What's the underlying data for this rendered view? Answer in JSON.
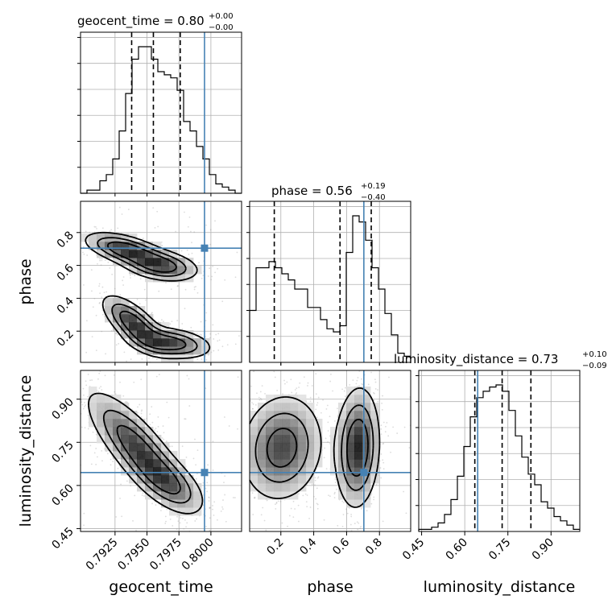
{
  "truth_color": "#4682b4",
  "parameters": [
    "geocent_time",
    "phase",
    "luminosity_distance"
  ],
  "titles": [
    {
      "text": "geocent_time = 0.80",
      "sup": "+0.00",
      "sub": "−0.00"
    },
    {
      "text": "phase = 0.56",
      "sup": "+0.19",
      "sub": "−0.40"
    },
    {
      "text": "luminosity_distance = 0.73",
      "sup": "+0.10",
      "sub": "−0.09"
    }
  ],
  "axis_labels": {
    "geocent_time": "geocent_time",
    "phase": "phase",
    "luminosity_distance": "luminosity_distance"
  },
  "tick_labels": {
    "geocent_time": [
      "0.7925",
      "0.7950",
      "0.7975",
      "0.8000"
    ],
    "phase": [
      "0.2",
      "0.4",
      "0.6",
      "0.8"
    ],
    "luminosity_distance": [
      "0.45",
      "0.60",
      "0.75",
      "0.90"
    ]
  },
  "chart_data": {
    "type": "corner",
    "parameters": [
      "geocent_time",
      "phase",
      "luminosity_distance"
    ],
    "ranges": {
      "geocent_time": [
        0.7898,
        0.8024
      ],
      "phase": [
        0.01,
        0.99
      ],
      "luminosity_distance": [
        0.44,
        1.0
      ]
    },
    "ticks": {
      "geocent_time": [
        0.7925,
        0.795,
        0.7975,
        0.8
      ],
      "phase": [
        0.2,
        0.4,
        0.6,
        0.8
      ],
      "luminosity_distance": [
        0.45,
        0.6,
        0.75,
        0.9
      ]
    },
    "truth": {
      "geocent_time": 0.7995,
      "phase": 0.705,
      "luminosity_distance": 0.645
    },
    "quantiles": {
      "geocent_time": [
        0.7938,
        0.7955,
        0.7976
      ],
      "phase": [
        0.16,
        0.56,
        0.75
      ],
      "luminosity_distance": [
        0.635,
        0.73,
        0.83
      ]
    },
    "histograms": {
      "geocent_time": [
        0,
        1,
        1,
        4,
        6,
        11,
        20,
        32,
        43,
        47,
        47,
        43,
        39,
        38,
        37,
        33,
        23,
        20,
        15,
        11,
        6,
        3,
        2,
        1,
        0
      ],
      "phase": [
        17,
        31,
        31,
        33,
        31,
        29,
        27,
        24,
        24,
        18,
        18,
        14,
        11,
        10,
        12,
        36,
        48,
        46,
        40,
        31,
        24,
        16,
        9,
        3,
        2
      ],
      "luminosity_distance": [
        1,
        1,
        2,
        4,
        8,
        15,
        26,
        40,
        54,
        63,
        66,
        68,
        69,
        66,
        57,
        45,
        35,
        27,
        22,
        14,
        11,
        7,
        5,
        3,
        1
      ]
    },
    "grid": true,
    "xlabels": [
      "geocent_time",
      "phase",
      "luminosity_distance"
    ],
    "ylabels": [
      "phase",
      "luminosity_distance"
    ]
  }
}
